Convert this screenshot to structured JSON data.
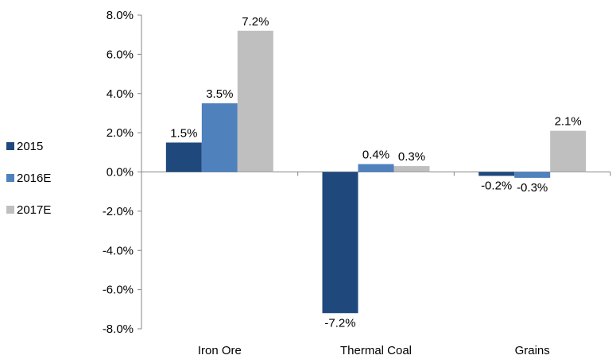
{
  "chart_data": {
    "type": "bar",
    "title": "",
    "xlabel": "",
    "ylabel": "",
    "categories": [
      "Iron Ore",
      "Thermal Coal",
      "Grains"
    ],
    "series": [
      {
        "name": "2015",
        "values": [
          1.5,
          -7.2,
          -0.2
        ],
        "labels": [
          "1.5%",
          "-7.2%",
          "-0.2%"
        ],
        "color": "#1F497D"
      },
      {
        "name": "2016E",
        "values": [
          3.5,
          0.4,
          -0.3
        ],
        "labels": [
          "3.5%",
          "0.4%",
          "-0.3%"
        ],
        "color": "#4F81BD"
      },
      {
        "name": "2017E",
        "values": [
          7.2,
          0.3,
          2.1
        ],
        "labels": [
          "7.2%",
          "0.3%",
          "2.1%"
        ],
        "color": "#BFBFBF"
      }
    ],
    "ylim": [
      -8,
      8
    ],
    "yticks": [
      8,
      6,
      4,
      2,
      0,
      -2,
      -4,
      -6,
      -8
    ],
    "ytick_labels": [
      "8.0%",
      "6.0%",
      "4.0%",
      "2.0%",
      "0.0%",
      "-2.0%",
      "-4.0%",
      "-6.0%",
      "-8.0%"
    ],
    "grid": false,
    "legend_position": "left"
  }
}
